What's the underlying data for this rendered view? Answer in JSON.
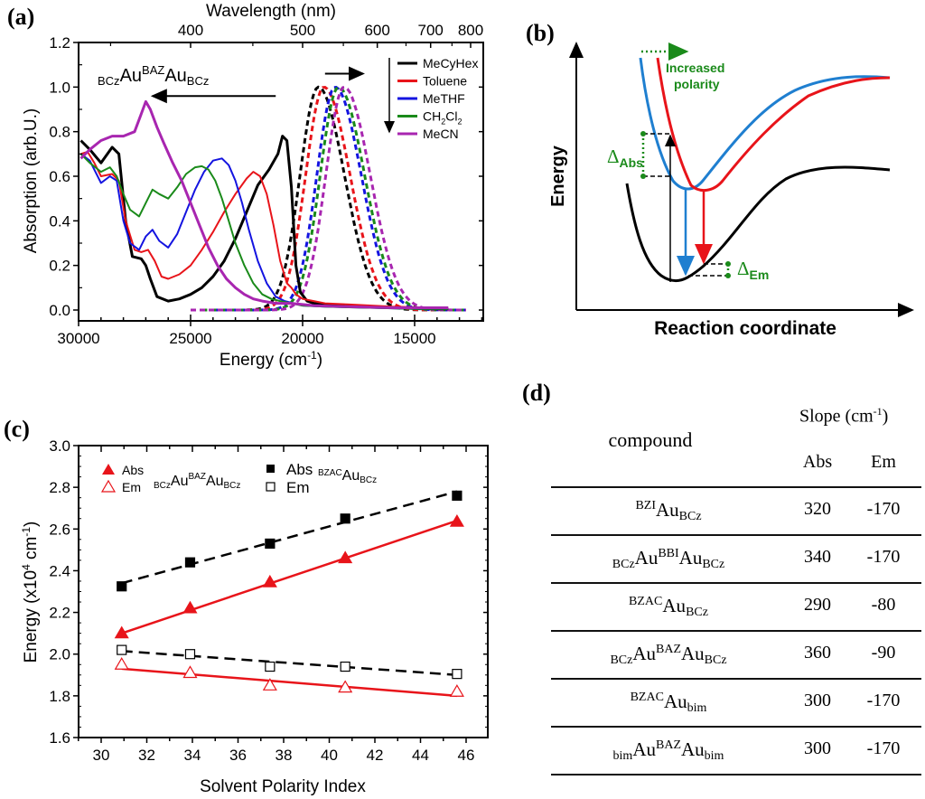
{
  "panels": {
    "a": {
      "label": "(a)"
    },
    "b": {
      "label": "(b)"
    },
    "c": {
      "label": "(c)"
    },
    "d": {
      "label": "(d)"
    }
  },
  "chart_data": [
    {
      "id": "a",
      "type": "line",
      "title": "",
      "annotation": {
        "pre_sub": "BCz",
        "base1": "Au",
        "sup": "BAZ",
        "base2": "Au",
        "post_sub": "BCz"
      },
      "xlabel": "Energy (cm-1)",
      "xlabel_parts": {
        "base": "Energy (cm",
        "sup": "-1",
        "close": ")"
      },
      "ylabel": "Absorption (arb.U.)",
      "top_xlabel": "Wavelength (nm)",
      "xlim": [
        30000,
        12000
      ],
      "ylim": [
        -0.05,
        1.2
      ],
      "x_ticks": [
        30000,
        25000,
        20000,
        15000
      ],
      "y_ticks": [
        0.0,
        0.2,
        0.4,
        0.6,
        0.8,
        1.0,
        1.2
      ],
      "y_tick_labels": [
        "0.0",
        "0.2",
        "0.4",
        "0.6",
        "0.8",
        "1.0",
        "1.2"
      ],
      "top_ticks_nm": [
        400,
        500,
        600,
        700,
        800
      ],
      "legend": {
        "placement": "top-right",
        "entries": [
          {
            "name": "MeCyHex",
            "color": "#000000"
          },
          {
            "name": "Toluene",
            "color": "#e8141a"
          },
          {
            "name": "MeTHF",
            "color": "#1414e0"
          },
          {
            "name": "CH2Cl2",
            "label_parts": {
              "a": "CH",
              "s1": "2",
              "b": "Cl",
              "s2": "2"
            },
            "color": "#1a8a1a"
          },
          {
            "name": "MeCN",
            "color": "#a826b0"
          }
        ]
      },
      "arrows": [
        {
          "from_x": 21200,
          "to_x": 26700,
          "y": 0.96,
          "meaning": "absorption blue-shift with polarity"
        },
        {
          "from_x": 19000,
          "to_x": 17300,
          "y": 1.06,
          "meaning": "emission red-shift with polarity"
        }
      ],
      "absorption_series": [
        {
          "name": "MeCyHex",
          "color": "#000000",
          "x": [
            29900,
            29500,
            29000,
            28500,
            28200,
            27900,
            27600,
            27200,
            27000,
            26800,
            26500,
            26000,
            25500,
            25000,
            24500,
            24000,
            23500,
            23000,
            22500,
            22000,
            21500,
            21100,
            20900,
            20700,
            20500,
            20300,
            20100,
            19800,
            19500,
            19000,
            18000,
            16000,
            14000,
            13500
          ],
          "y": [
            0.76,
            0.72,
            0.66,
            0.73,
            0.7,
            0.4,
            0.24,
            0.23,
            0.2,
            0.14,
            0.06,
            0.04,
            0.05,
            0.07,
            0.1,
            0.15,
            0.22,
            0.32,
            0.44,
            0.56,
            0.63,
            0.7,
            0.78,
            0.76,
            0.55,
            0.2,
            0.08,
            0.04,
            0.03,
            0.025,
            0.02,
            0.01,
            0.005,
            0.005
          ]
        },
        {
          "name": "Toluene",
          "color": "#e8141a",
          "x": [
            29900,
            29600,
            29300,
            29000,
            28500,
            28200,
            27900,
            27500,
            27200,
            26900,
            26600,
            26300,
            26000,
            25500,
            25000,
            24500,
            24000,
            23500,
            23000,
            22500,
            22200,
            21900,
            21600,
            21300,
            21000,
            20700,
            20500,
            20300,
            20000,
            19500,
            19000,
            18000,
            16000,
            14000,
            13500
          ],
          "y": [
            0.7,
            0.71,
            0.66,
            0.6,
            0.61,
            0.58,
            0.4,
            0.27,
            0.26,
            0.27,
            0.22,
            0.15,
            0.14,
            0.16,
            0.2,
            0.27,
            0.35,
            0.44,
            0.52,
            0.59,
            0.62,
            0.6,
            0.52,
            0.38,
            0.22,
            0.12,
            0.1,
            0.07,
            0.05,
            0.04,
            0.03,
            0.025,
            0.015,
            0.01,
            0.01
          ]
        },
        {
          "name": "MeTHF",
          "color": "#1414e0",
          "x": [
            29900,
            29500,
            29000,
            28600,
            28300,
            28000,
            27700,
            27300,
            27000,
            26700,
            26400,
            26000,
            25600,
            25200,
            24800,
            24400,
            24000,
            23600,
            23300,
            23000,
            22700,
            22400,
            22000,
            21600,
            21200,
            20800,
            20400,
            20000,
            19000,
            17000,
            15000,
            13500
          ],
          "y": [
            0.7,
            0.67,
            0.57,
            0.6,
            0.58,
            0.4,
            0.3,
            0.27,
            0.33,
            0.36,
            0.31,
            0.28,
            0.34,
            0.44,
            0.54,
            0.62,
            0.67,
            0.68,
            0.65,
            0.58,
            0.48,
            0.36,
            0.22,
            0.12,
            0.06,
            0.04,
            0.03,
            0.02,
            0.015,
            0.01,
            0.005,
            0.005
          ]
        },
        {
          "name": "CH2Cl2",
          "color": "#1a8a1a",
          "x": [
            29900,
            29500,
            29000,
            28600,
            28300,
            28000,
            27700,
            27300,
            27000,
            26700,
            26400,
            26000,
            25600,
            25200,
            24800,
            24500,
            24200,
            23900,
            23600,
            23300,
            23000,
            22600,
            22200,
            21800,
            21400,
            21000,
            20500,
            20000,
            19000,
            17000,
            15000,
            13500
          ],
          "y": [
            0.7,
            0.66,
            0.62,
            0.64,
            0.6,
            0.52,
            0.45,
            0.42,
            0.48,
            0.54,
            0.52,
            0.5,
            0.55,
            0.61,
            0.64,
            0.645,
            0.63,
            0.58,
            0.5,
            0.4,
            0.3,
            0.2,
            0.12,
            0.07,
            0.05,
            0.04,
            0.03,
            0.02,
            0.015,
            0.01,
            0.005,
            0.005
          ]
        },
        {
          "name": "MeCN",
          "color": "#a826b0",
          "x": [
            29900,
            29500,
            29000,
            28500,
            28000,
            27500,
            27200,
            27000,
            26800,
            26500,
            26200,
            25800,
            25400,
            25000,
            24600,
            24200,
            23800,
            23400,
            23000,
            22600,
            22200,
            21800,
            21200,
            20500,
            19500,
            18000,
            16000,
            14000,
            13500
          ],
          "y": [
            0.68,
            0.72,
            0.76,
            0.78,
            0.78,
            0.8,
            0.88,
            0.935,
            0.9,
            0.82,
            0.75,
            0.66,
            0.58,
            0.48,
            0.38,
            0.28,
            0.2,
            0.14,
            0.1,
            0.07,
            0.05,
            0.04,
            0.03,
            0.03,
            0.02,
            0.015,
            0.01,
            0.01,
            0.01
          ]
        }
      ],
      "emission_series": [
        {
          "name": "MeCyHex",
          "color": "#000000",
          "peak_x": 19300,
          "y_peak": 1.0,
          "start_x": 22500,
          "end_x": 12700
        },
        {
          "name": "Toluene",
          "color": "#e8141a",
          "peak_x": 19050,
          "y_peak": 1.0,
          "start_x": 22500,
          "end_x": 12700
        },
        {
          "name": "MeTHF",
          "color": "#1414e0",
          "peak_x": 18550,
          "y_peak": 1.0,
          "start_x": 24000,
          "end_x": 12700
        },
        {
          "name": "CH2Cl2",
          "color": "#1a8a1a",
          "peak_x": 18400,
          "y_peak": 1.0,
          "start_x": 24500,
          "end_x": 12700
        },
        {
          "name": "MeCN",
          "color": "#a826b0",
          "peak_x": 18150,
          "y_peak": 1.0,
          "start_x": 25000,
          "end_x": 12700
        }
      ]
    },
    {
      "id": "c",
      "type": "scatter",
      "title": "",
      "xlabel": "Solvent Polarity Index",
      "ylabel": "Energy (x10^4 cm-1)",
      "ylabel_parts": {
        "a": "Energy (x10",
        "s1": "4",
        "b": " cm",
        "s2": "-1",
        "c": ")"
      },
      "xlim": [
        29,
        46.4
      ],
      "ylim": [
        1.6,
        3.0
      ],
      "x_ticks": [
        30,
        32,
        34,
        36,
        38,
        40,
        42,
        44,
        46
      ],
      "y_ticks": [
        1.6,
        1.8,
        2.0,
        2.2,
        2.4,
        2.6,
        2.8,
        3.0
      ],
      "y_tick_labels": [
        "1.6",
        "1.8",
        "2.0",
        "2.2",
        "2.4",
        "2.6",
        "2.8",
        "3.0"
      ],
      "legend": {
        "placement": "top-left",
        "groups": [
          {
            "compound": {
              "pre_sub": "BCz",
              "base1": "Au",
              "sup": "BAZ",
              "base2": "Au",
              "post_sub": "BCz"
            },
            "entries": [
              "Abs",
              "Em"
            ]
          },
          {
            "compound": {
              "sup": "BZAC",
              "base1": "Au",
              "post_sub": "BCz"
            },
            "entries": [
              "Abs",
              "Em"
            ]
          }
        ]
      },
      "x": [
        30.9,
        33.9,
        37.4,
        40.7,
        45.6
      ],
      "series": [
        {
          "name": "Abs BCzAuBAZAuBCz",
          "marker": "triangle-filled",
          "color": "#e8141a",
          "values": [
            2.1,
            2.22,
            2.345,
            2.46,
            2.635
          ],
          "fit": {
            "line": "solid",
            "y0": 2.1,
            "y1": 2.64
          }
        },
        {
          "name": "Em BCzAuBAZAuBCz",
          "marker": "triangle-open",
          "color": "#e8141a",
          "values": [
            1.95,
            1.91,
            1.85,
            1.84,
            1.82
          ],
          "fit": {
            "line": "solid",
            "y0": 1.93,
            "y1": 1.8
          }
        },
        {
          "name": "Abs BZACAuBCz",
          "marker": "square-filled",
          "color": "#000000",
          "values": [
            2.325,
            2.44,
            2.53,
            2.65,
            2.76
          ],
          "fit": {
            "line": "dashed",
            "y0": 2.34,
            "y1": 2.78
          }
        },
        {
          "name": "Em BZACAuBCz",
          "marker": "square-open",
          "color": "#000000",
          "values": [
            2.02,
            2.0,
            1.94,
            1.94,
            1.905
          ],
          "fit": {
            "line": "dashed",
            "y0": 2.015,
            "y1": 1.9
          }
        }
      ]
    }
  ],
  "diagram_b": {
    "ylabel": "Energy",
    "xlabel": "Reaction coordinate",
    "polarity_label_line1": "Increased",
    "polarity_label_line2": "polarity",
    "delta_abs": {
      "symbol": "Δ",
      "sub": "Abs"
    },
    "delta_em": {
      "symbol": "Δ",
      "sub": "Em"
    },
    "colors": {
      "ground": "#000000",
      "excited_low": "#1f7fd0",
      "excited_high": "#e8141a",
      "annotation": "#1a8a1a"
    }
  },
  "table_d": {
    "header": {
      "compound": "compound",
      "slope": "Slope (cm",
      "slope_sup": "-1",
      "slope_close": ")",
      "abs": "Abs",
      "em": "Em"
    },
    "rows": [
      {
        "pre_sub": "",
        "sup1": "BZI",
        "base1": "Au",
        "sup2": "",
        "base2": "",
        "post_sub": "BCz",
        "abs": "320",
        "em": "-170"
      },
      {
        "pre_sub": "BCz",
        "sup1": "",
        "base1": "Au",
        "sup2": "BBI",
        "base2": "Au",
        "post_sub": "BCz",
        "abs": "340",
        "em": "-170"
      },
      {
        "pre_sub": "",
        "sup1": "BZAC",
        "base1": "Au",
        "sup2": "",
        "base2": "",
        "post_sub": "BCz",
        "abs": "290",
        "em": "-80"
      },
      {
        "pre_sub": "BCz",
        "sup1": "",
        "base1": "Au",
        "sup2": "BAZ",
        "base2": "Au",
        "post_sub": "BCz",
        "abs": "360",
        "em": "-90"
      },
      {
        "pre_sub": "",
        "sup1": "BZAC",
        "base1": "Au",
        "sup2": "",
        "base2": "",
        "post_sub": "bim",
        "abs": "300",
        "em": "-170"
      },
      {
        "pre_sub": "bim",
        "sup1": "",
        "base1": "Au",
        "sup2": "BAZ",
        "base2": "Au",
        "post_sub": "bim",
        "abs": "300",
        "em": "-170"
      }
    ]
  }
}
